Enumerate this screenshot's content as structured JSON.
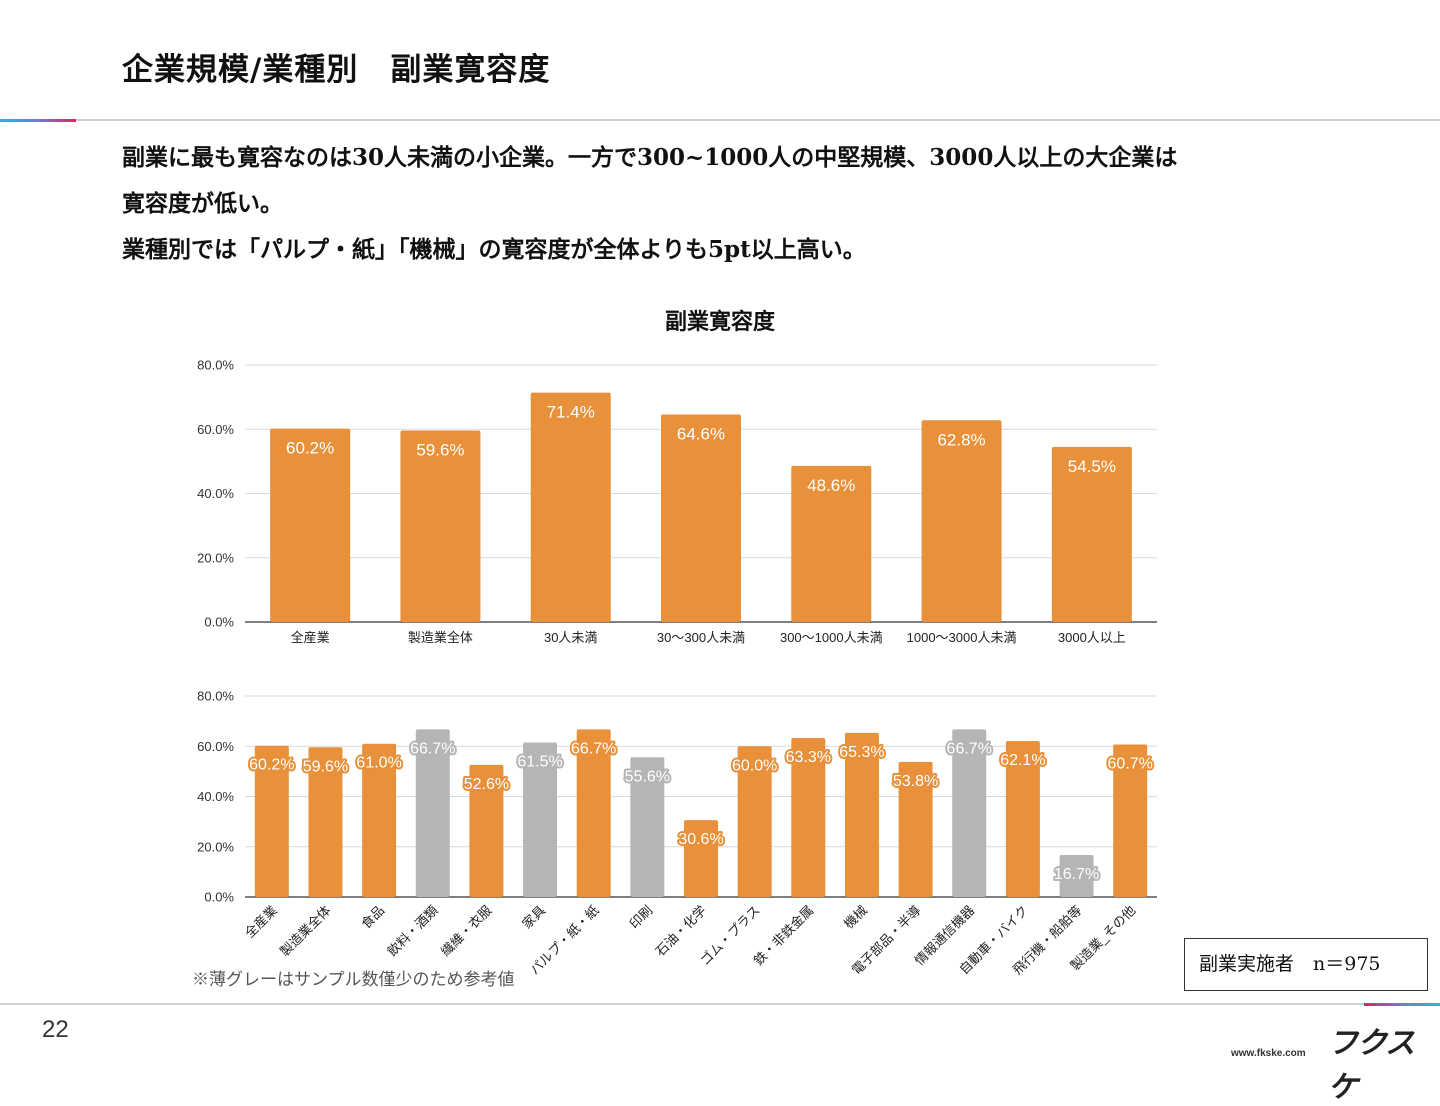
{
  "slide": {
    "title": "企業規模/業種別　副業寛容度",
    "summary": [
      "副業に最も寛容なのは30人未満の小企業。一方で300~1000人の中堅規模、3000人以上の大企業は",
      "寛容度が低い。",
      "業種別では「パルプ・紙」「機械」の寛容度が全体よりも5pt以上高い。"
    ],
    "note": "※薄グレーはサンプル数僅少のため参考値",
    "sample_box": "副業実施者　n＝975",
    "page_number": "22",
    "logo": "フクスケ",
    "site": "www.fkske.com"
  },
  "colors": {
    "bar": "#e8913a",
    "bar_reference": "#b5b5b5",
    "grid": "#d9d9d9",
    "axis": "#333333",
    "accent_blue": "#21b7e6",
    "accent_pink": "#e0245e"
  },
  "chart_data": [
    {
      "type": "bar",
      "title": "副業寛容度",
      "categories": [
        "全産業",
        "製造業全体",
        "30人未満",
        "30〜300人未満",
        "300〜1000人未満",
        "1000〜3000人未満",
        "3000人以上"
      ],
      "values": [
        60.2,
        59.6,
        71.4,
        64.6,
        48.6,
        62.8,
        54.5
      ],
      "value_labels": [
        "60.2%",
        "59.6%",
        "71.4%",
        "64.6%",
        "48.6%",
        "62.8%",
        "54.5%"
      ],
      "ylim": [
        0,
        80
      ],
      "yticks": [
        "0.0%",
        "20.0%",
        "40.0%",
        "60.0%",
        "80.0%"
      ],
      "grid": true
    },
    {
      "type": "bar",
      "categories": [
        "全産業",
        "製造業全体",
        "食品",
        "飲料・酒類",
        "繊維・衣服",
        "家具",
        "パルプ・紙・紙",
        "印刷",
        "石油・化学",
        "ゴム・プラス",
        "鉄・非鉄金属",
        "機械",
        "電子部品・半導",
        "情報通信機器",
        "自動車・バイク",
        "飛行機・船舶等",
        "製造業_その他"
      ],
      "values": [
        60.2,
        59.6,
        61.0,
        66.7,
        52.6,
        61.5,
        66.7,
        55.6,
        30.6,
        60.0,
        63.3,
        65.3,
        53.8,
        66.7,
        62.1,
        16.7,
        60.7
      ],
      "value_labels": [
        "60.2%",
        "59.6%",
        "61.0%",
        "66.7%",
        "52.6%",
        "61.5%",
        "66.7%",
        "55.6%",
        "30.6%",
        "60.0%",
        "63.3%",
        "65.3%",
        "53.8%",
        "66.7%",
        "62.1%",
        "16.7%",
        "60.7%"
      ],
      "reference": [
        false,
        false,
        false,
        true,
        false,
        true,
        false,
        true,
        false,
        false,
        false,
        false,
        false,
        true,
        false,
        true,
        false
      ],
      "ylim": [
        0,
        80
      ],
      "yticks": [
        "0.0%",
        "20.0%",
        "40.0%",
        "60.0%",
        "80.0%"
      ],
      "grid": true
    }
  ]
}
